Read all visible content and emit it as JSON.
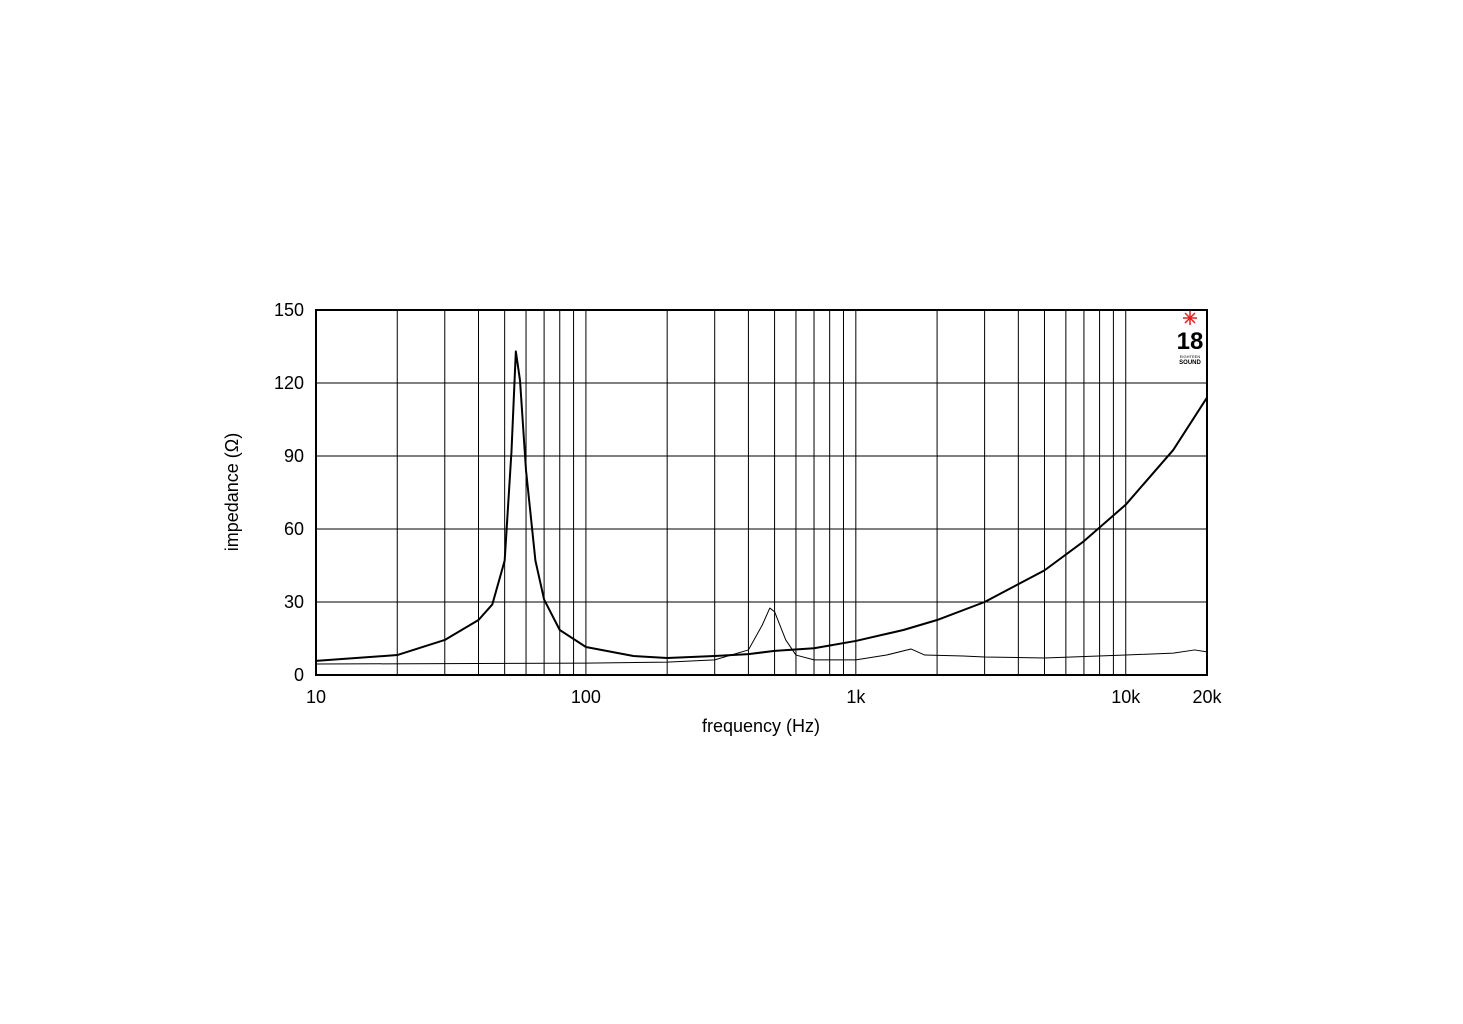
{
  "chart_data": {
    "type": "line",
    "xlabel": "frequency (Hz)",
    "ylabel": "impedance (Ω)",
    "xscale": "log",
    "xlim": [
      10,
      20000
    ],
    "ylim": [
      0,
      150
    ],
    "xticks": [
      10,
      100,
      {
        "value": 1000,
        "label": "1k"
      },
      {
        "value": 10000,
        "label": "10k"
      },
      {
        "value": 20000,
        "label": "20k"
      }
    ],
    "xgrid_minor": [
      20,
      30,
      40,
      50,
      60,
      70,
      80,
      90,
      200,
      300,
      400,
      500,
      600,
      700,
      800,
      900,
      2000,
      3000,
      4000,
      5000,
      6000,
      7000,
      8000,
      9000
    ],
    "yticks": [
      0,
      30,
      60,
      90,
      120,
      150
    ],
    "grid": true,
    "logo": {
      "number": "18",
      "line1": "EIGHTEEN",
      "line2": "SOUND"
    },
    "series": [
      {
        "color": "#000000",
        "width": 2,
        "x": [
          10,
          20,
          30,
          40,
          45,
          50,
          53,
          55,
          57,
          60,
          65,
          70,
          80,
          100,
          150,
          200,
          300,
          400,
          500,
          700,
          1000,
          1500,
          2000,
          3000,
          5000,
          7000,
          10000,
          15000,
          20000
        ],
        "values": [
          5.8,
          8.2,
          14.4,
          22.6,
          29,
          47,
          92,
          133,
          121,
          84,
          47,
          31,
          18.5,
          11.5,
          7.8,
          7,
          7.8,
          8.6,
          9.9,
          11,
          14,
          18.5,
          22.6,
          30,
          43,
          55,
          70,
          92.5,
          114
        ]
      },
      {
        "color": "#000000",
        "width": 1,
        "x": [
          10,
          100,
          200,
          300,
          400,
          450,
          480,
          500,
          550,
          600,
          700,
          1000,
          1300,
          1600,
          1800,
          2500,
          3000,
          5000,
          10000,
          15000,
          18000,
          20000
        ],
        "values": [
          4.5,
          4.9,
          5.3,
          6.2,
          10.3,
          20.5,
          27.5,
          26,
          14.4,
          8.2,
          6.2,
          6.2,
          8.2,
          10.7,
          8.2,
          7.8,
          7.4,
          7,
          8.2,
          9,
          10.3,
          9.5
        ]
      }
    ]
  }
}
